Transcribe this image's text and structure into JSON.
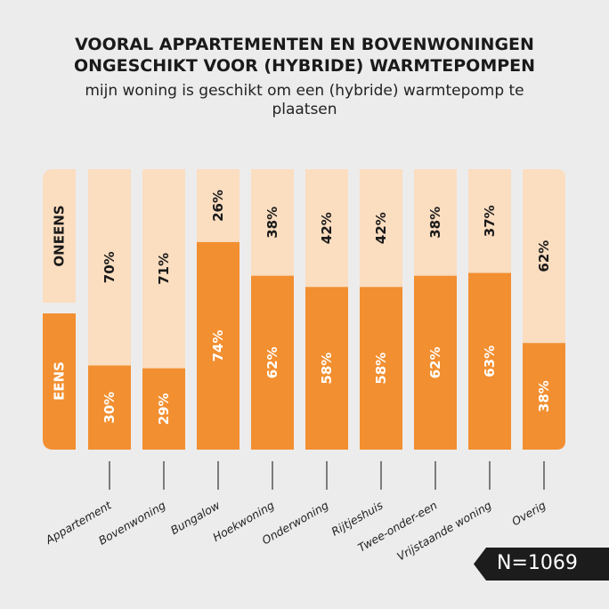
{
  "chart_data": {
    "type": "bar",
    "stacked": true,
    "title": [
      "VOORAL APPARTEMENTEN EN BOVENWONINGEN",
      "ONGESCHIKT VOOR (HYBRIDE) WARMTEPOMPEN"
    ],
    "subtitle": "mijn woning is geschikt om een (hybride) warmtepomp te plaatsen",
    "categories": [
      "Appartement",
      "Bovenwoning",
      "Bungalow",
      "Hoekwoning",
      "Onderwoning",
      "Rijtjeshuis",
      "Twee-onder-een",
      "Vrijstaande woning",
      "Overig"
    ],
    "series": [
      {
        "name": "EENS",
        "color": "#f28f30",
        "values": [
          30,
          29,
          74,
          62,
          58,
          58,
          62,
          63,
          38
        ]
      },
      {
        "name": "ONEENS",
        "color": "#fbddc0",
        "values": [
          70,
          71,
          26,
          38,
          42,
          42,
          38,
          37,
          62
        ]
      }
    ],
    "ylim": [
      0,
      100
    ],
    "annotation": "N=1069"
  }
}
